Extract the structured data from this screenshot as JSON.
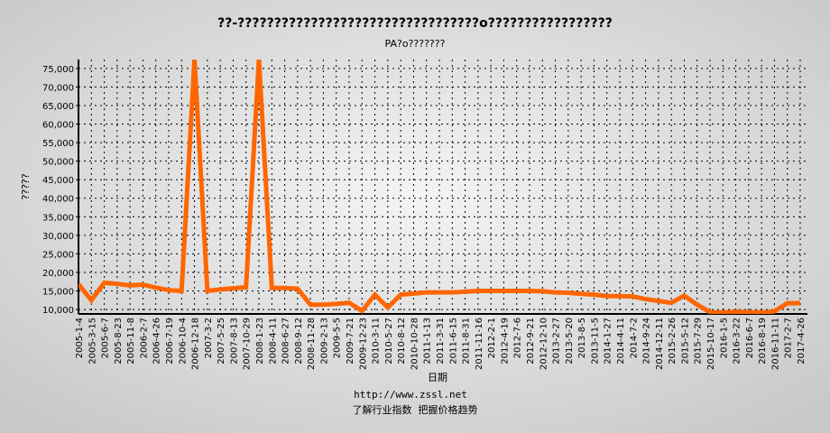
{
  "chart_data": {
    "type": "line",
    "title": "??-?????????????????????????????????o?????????????????",
    "subtitle": "PA?o???????",
    "y_label": "?????",
    "x_label": "日期",
    "footer_url": "http://www.zssl.net",
    "footer_slogan": "了解行业指数  把握价格趋势",
    "categories": [
      "2005-1-4",
      "2005-3-15",
      "2005-6-7",
      "2005-8-23",
      "2005-11-8",
      "2006-2-7",
      "2006-4-26",
      "2006-7-19",
      "2006-10-4",
      "2006-12-18",
      "2007-3-2",
      "2007-5-25",
      "2007-8-13",
      "2007-10-29",
      "2008-1-23",
      "2008-4-11",
      "2008-6-27",
      "2008-9-12",
      "2008-11-28",
      "2009-2-13",
      "2009-5-5",
      "2009-7-21",
      "2009-12-23",
      "2010-3-11",
      "2010-5-27",
      "2010-8-12",
      "2010-10-28",
      "2011-1-13",
      "2011-3-31",
      "2011-6-15",
      "2011-8-31",
      "2011-11-16",
      "2012-2-1",
      "2012-4-19",
      "2012-7-6",
      "2012-9-21",
      "2012-12-10",
      "2013-2-27",
      "2013-5-20",
      "2013-8-5",
      "2013-11-5",
      "2014-1-27",
      "2014-4-11",
      "2014-7-2",
      "2014-9-24",
      "2014-12-11",
      "2015-2-26",
      "2015-5-12",
      "2015-7-29",
      "2015-10-17",
      "2016-1-5",
      "2016-3-22",
      "2016-6-7",
      "2016-8-19",
      "2016-11-11",
      "2017-2-7",
      "2017-4-26"
    ],
    "series": [
      {
        "color": "#ff6600",
        "values": [
          16800,
          12500,
          17200,
          16900,
          16500,
          16700,
          15900,
          15200,
          15000,
          77400,
          15000,
          15400,
          15700,
          16000,
          77400,
          15800,
          15800,
          15600,
          11300,
          11300,
          11500,
          11800,
          9600,
          14000,
          10500,
          14000,
          14300,
          14600,
          14600,
          14600,
          14800,
          15000,
          15000,
          15000,
          15000,
          15000,
          14900,
          14600,
          14500,
          14200,
          14000,
          13600,
          13600,
          13500,
          12800,
          12300,
          11800,
          13700,
          11300,
          9300,
          9200,
          9400,
          9300,
          9200,
          9500,
          11700,
          11700
        ]
      }
    ],
    "ylim": [
      8800,
      77400
    ],
    "yticks": [
      {
        "value": 10000,
        "label": "10,000"
      },
      {
        "value": 15000,
        "label": "15,000"
      },
      {
        "value": 20000,
        "label": "20,000"
      },
      {
        "value": 25000,
        "label": "25,000"
      },
      {
        "value": 30000,
        "label": "30,000"
      },
      {
        "value": 35000,
        "label": "35,000"
      },
      {
        "value": 40000,
        "label": "40,000"
      },
      {
        "value": 45000,
        "label": "45,000"
      },
      {
        "value": 50000,
        "label": "50,000"
      },
      {
        "value": 55000,
        "label": "55,000"
      },
      {
        "value": 60000,
        "label": "60,000"
      },
      {
        "value": 65000,
        "label": "65,000"
      },
      {
        "value": 70000,
        "label": "70,000"
      },
      {
        "value": 75000,
        "label": "75,000"
      }
    ],
    "grid": true
  }
}
